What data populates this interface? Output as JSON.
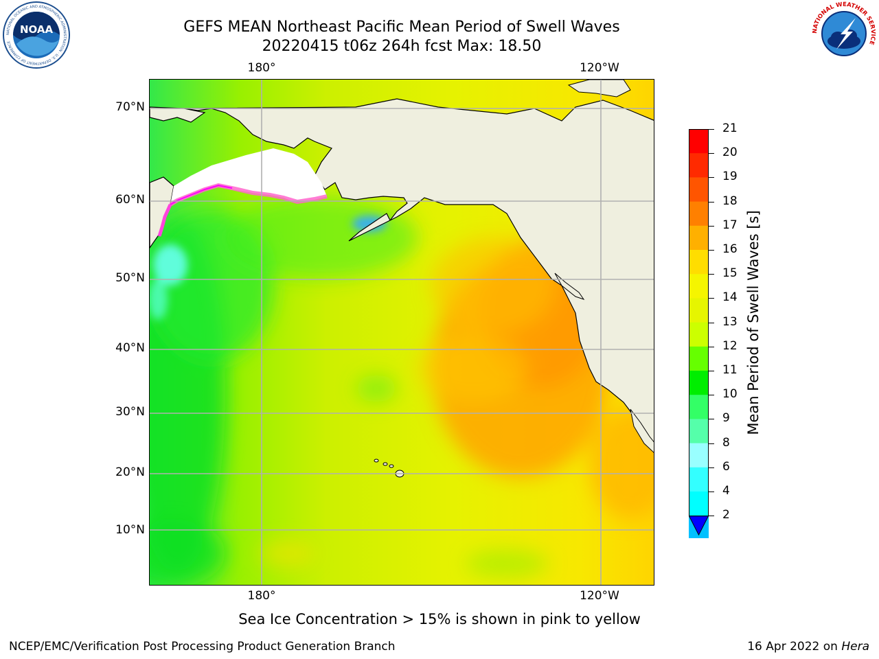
{
  "header": {
    "title_line1": "GEFS MEAN Northeast Pacific Mean Period of Swell Waves",
    "title_line2": "20220415 t06z 264h fcst   Max: 18.50"
  },
  "logos": {
    "noaa_text": "NOAA",
    "noaa_ring": "NATIONAL OCEANIC AND ATMOSPHERIC ADMINISTRATION · U.S. DEPARTMENT OF COMMERCE",
    "nws_ring": "NATIONAL WEATHER SERVICE"
  },
  "map": {
    "lon_labels_top": [
      "180°",
      "120°W"
    ],
    "lon_labels_bottom": [
      "180°",
      "120°W"
    ],
    "lat_labels": [
      "70°N",
      "60°N",
      "50°N",
      "40°N",
      "30°N",
      "20°N",
      "10°N"
    ],
    "colors": {
      "land": "#efefdf",
      "ice_free_land": "#ffffff",
      "grid": "#b0b0b0",
      "coast": "#000000"
    }
  },
  "colorbar": {
    "label": "Mean Period of Swell Waves [s]",
    "ticks": [
      "21",
      "20",
      "19",
      "18",
      "17",
      "16",
      "15",
      "14",
      "13",
      "12",
      "11",
      "10",
      "9",
      "8",
      "6",
      "4",
      "2"
    ],
    "colors_top_to_bottom": [
      "#ff0000",
      "#ff2a00",
      "#ff5500",
      "#ff8000",
      "#ffb000",
      "#ffdd00",
      "#f5f500",
      "#e6f500",
      "#ccff00",
      "#66ff00",
      "#00ee00",
      "#33ff66",
      "#55ffaa",
      "#99ffff",
      "#33ffff",
      "#00ffff",
      "#00c0ff",
      "#0070ff",
      "#0000ff"
    ]
  },
  "footer": {
    "note": "Sea Ice Concentration > 15% is shown in pink to yellow",
    "credit": "NCEP/EMC/Verification Post Processing Product Generation Branch",
    "date": "16 Apr 2022 on ",
    "machine": "Hera"
  }
}
